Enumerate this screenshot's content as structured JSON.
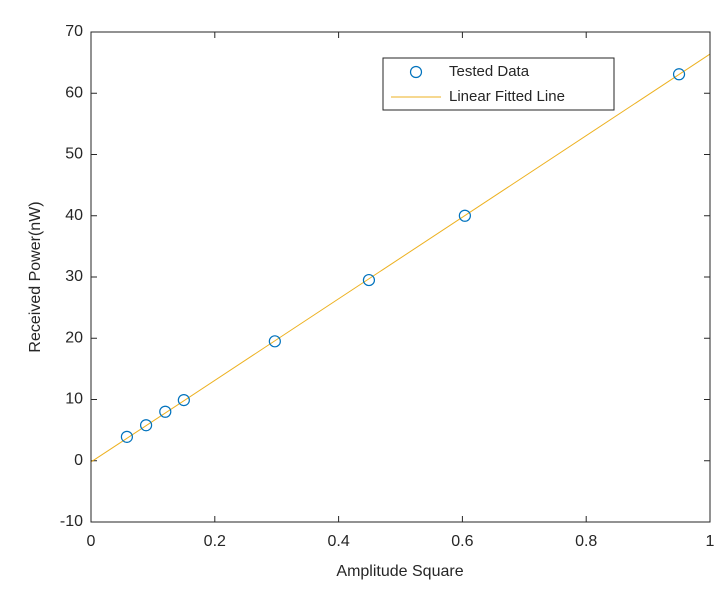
{
  "chart_data": {
    "type": "scatter",
    "xlabel": "Amplitude Square",
    "ylabel": "Received Power(nW)",
    "xlim": [
      0,
      1
    ],
    "ylim": [
      -10,
      70
    ],
    "xticks": [
      0,
      0.2,
      0.4,
      0.6,
      0.8,
      1
    ],
    "yticks": [
      -10,
      0,
      10,
      20,
      30,
      40,
      50,
      60,
      70
    ],
    "grid": false,
    "legend": "upper right",
    "series": [
      {
        "name": "Tested Data",
        "type": "scatter",
        "color": "#0072bd",
        "x": [
          0.058,
          0.089,
          0.12,
          0.15,
          0.297,
          0.449,
          0.604,
          0.95
        ],
        "values": [
          3.9,
          5.8,
          8.0,
          9.9,
          19.5,
          29.5,
          40.0,
          63.1
        ]
      },
      {
        "name": "Linear Fitted Line",
        "type": "line",
        "color": "#edb120",
        "x": [
          0,
          1
        ],
        "values": [
          -0.2,
          66.4
        ]
      }
    ]
  }
}
